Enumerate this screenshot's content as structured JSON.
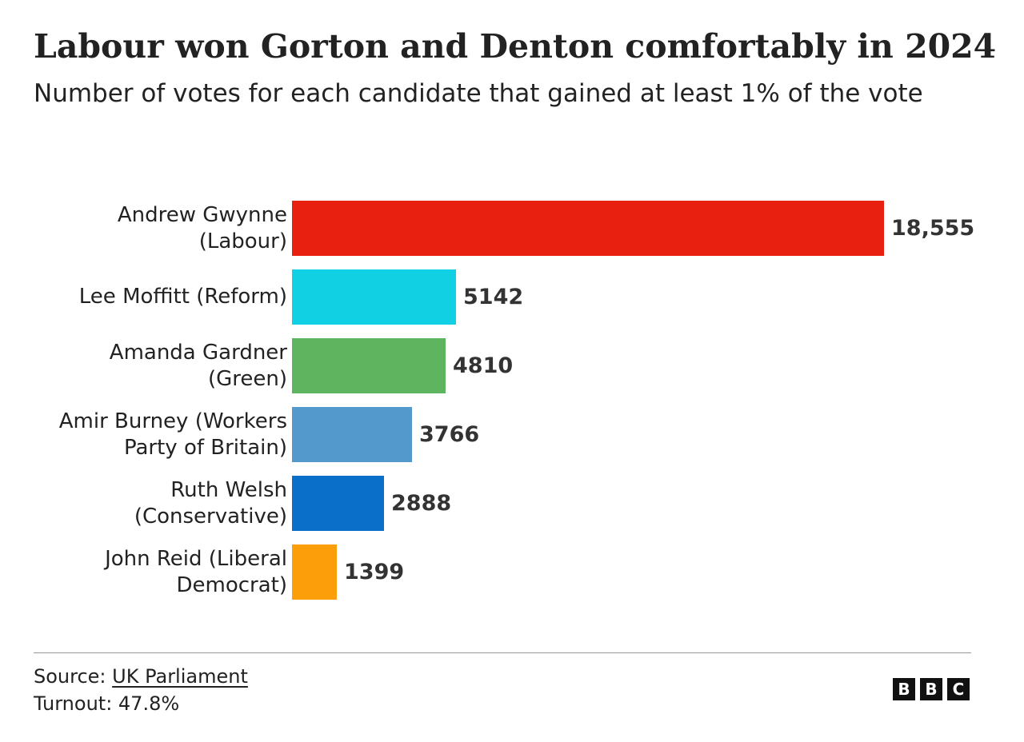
{
  "header": {
    "title": "Labour won Gorton and Denton comfortably in 2024",
    "subtitle": "Number of votes for each candidate that gained at least 1% of the vote"
  },
  "chart_data": {
    "type": "bar",
    "orientation": "horizontal",
    "title": "Labour won Gorton and Denton comfortably in 2024",
    "subtitle": "Number of votes for each candidate that gained at least 1% of the vote",
    "xlabel": "",
    "ylabel": "",
    "grid": false,
    "xlim": [
      0,
      18555
    ],
    "categories": [
      [
        "Andrew Gwynne",
        "(Labour)"
      ],
      [
        "Lee Moffitt (Reform)"
      ],
      [
        "Amanda Gardner",
        "(Green)"
      ],
      [
        "Amir Burney (Workers",
        "Party of Britain)"
      ],
      [
        "Ruth Welsh",
        "(Conservative)"
      ],
      [
        "John Reid (Liberal",
        "Democrat)"
      ]
    ],
    "values": [
      18555,
      5142,
      4810,
      3766,
      2888,
      1399
    ],
    "value_labels": [
      "18,555",
      "5142",
      "4810",
      "3766",
      "2888",
      "1399"
    ],
    "colors": [
      "#e8200f",
      "#12d0e3",
      "#5fb55f",
      "#5499cc",
      "#0a6fc8",
      "#fb9e0a"
    ]
  },
  "footer": {
    "source_prefix": "Source: ",
    "source_link": "UK Parliament",
    "turnout": "Turnout: 47.8%",
    "logo_letters": [
      "B",
      "B",
      "C"
    ]
  }
}
